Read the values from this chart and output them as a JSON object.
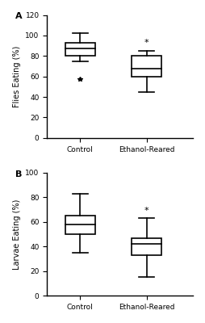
{
  "panel_A": {
    "label": "A",
    "ylabel": "Flies Eating (%)",
    "ylim": [
      0,
      120
    ],
    "yticks": [
      0,
      20,
      40,
      60,
      80,
      100,
      120
    ],
    "xlabels": [
      "Control",
      "Ethanol-Reared"
    ],
    "control": {
      "whisker_low": 75,
      "q1": 80,
      "median": 87,
      "q3": 93,
      "whisker_high": 102,
      "flier_low": 57
    },
    "ethanol": {
      "whisker_low": 45,
      "q1": 60,
      "median": 68,
      "q3": 80,
      "whisker_high": 85,
      "flier_low": null
    },
    "sig_star": true
  },
  "panel_B": {
    "label": "B",
    "ylabel": "Larvae Eating (%)",
    "ylim": [
      0,
      100
    ],
    "yticks": [
      0,
      20,
      40,
      60,
      80,
      100
    ],
    "xlabels": [
      "Control",
      "Ethanol-Reared"
    ],
    "control": {
      "whisker_low": 35,
      "q1": 50,
      "median": 58,
      "q3": 65,
      "whisker_high": 83,
      "flier_low": null
    },
    "ethanol": {
      "whisker_low": 15,
      "q1": 33,
      "median": 42,
      "q3": 47,
      "whisker_high": 63,
      "flier_low": null
    },
    "sig_star": true
  },
  "box_width": 0.45,
  "linewidth": 1.2,
  "figsize": [
    2.54,
    4.0
  ],
  "dpi": 100,
  "background_color": "#ffffff",
  "box_facecolor": "#ffffff",
  "box_edgecolor": "#000000",
  "fontsize_label": 7,
  "fontsize_tick": 6.5,
  "fontsize_panel": 8
}
